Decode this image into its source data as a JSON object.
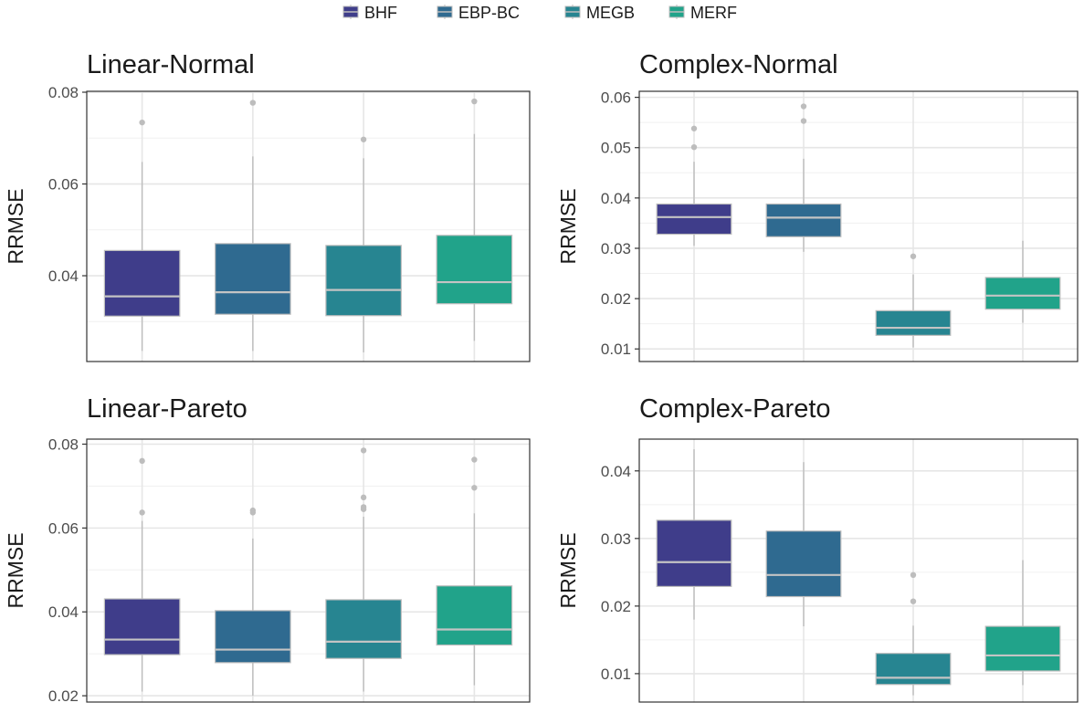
{
  "legend": {
    "entries": [
      {
        "label": "BHF",
        "color": "#3f3d8a"
      },
      {
        "label": "EBP-BC",
        "color": "#2f6a90"
      },
      {
        "label": "MEGB",
        "color": "#278591"
      },
      {
        "label": "MERF",
        "color": "#21a38a"
      }
    ]
  },
  "chart_data": [
    {
      "type": "box",
      "title": "Linear-Normal",
      "ylabel": "RRMSE",
      "ylim": [
        0.0213,
        0.0802
      ],
      "yticks": [
        0.04,
        0.06,
        0.08
      ],
      "ytick_labels": [
        "0.04",
        "0.06",
        "0.08"
      ],
      "grid": true,
      "categories": [
        "BHF",
        "EBP-BC",
        "MEGB",
        "MERF"
      ],
      "boxes": [
        {
          "whisker_low": 0.0236,
          "q1": 0.0312,
          "median": 0.0355,
          "q3": 0.0455,
          "whisker_high": 0.0648,
          "outliers": [
            0.0734
          ]
        },
        {
          "whisker_low": 0.0236,
          "q1": 0.0316,
          "median": 0.0364,
          "q3": 0.047,
          "whisker_high": 0.066,
          "outliers": [
            0.0777
          ]
        },
        {
          "whisker_low": 0.0233,
          "q1": 0.0313,
          "median": 0.0369,
          "q3": 0.0466,
          "whisker_high": 0.0656,
          "outliers": [
            0.0697
          ]
        },
        {
          "whisker_low": 0.0258,
          "q1": 0.0339,
          "median": 0.0386,
          "q3": 0.0488,
          "whisker_high": 0.0709,
          "outliers": [
            0.078
          ]
        }
      ]
    },
    {
      "type": "box",
      "title": "Complex-Normal",
      "ylabel": "RRMSE",
      "ylim": [
        0.0075,
        0.0612
      ],
      "yticks": [
        0.01,
        0.02,
        0.03,
        0.04,
        0.05,
        0.06
      ],
      "ytick_labels": [
        "0.01",
        "0.02",
        "0.03",
        "0.04",
        "0.05",
        "0.06"
      ],
      "grid": true,
      "categories": [
        "BHF",
        "EBP-BC",
        "MEGB",
        "MERF"
      ],
      "boxes": [
        {
          "whisker_low": 0.0305,
          "q1": 0.0328,
          "median": 0.0362,
          "q3": 0.0388,
          "whisker_high": 0.0472,
          "outliers": [
            0.0501,
            0.0538
          ]
        },
        {
          "whisker_low": 0.0293,
          "q1": 0.0323,
          "median": 0.0361,
          "q3": 0.0388,
          "whisker_high": 0.0478,
          "outliers": [
            0.0553,
            0.0582
          ]
        },
        {
          "whisker_low": 0.0103,
          "q1": 0.0127,
          "median": 0.0142,
          "q3": 0.0176,
          "whisker_high": 0.0248,
          "outliers": [
            0.0284
          ]
        },
        {
          "whisker_low": 0.0152,
          "q1": 0.0179,
          "median": 0.0206,
          "q3": 0.0242,
          "whisker_high": 0.0315,
          "outliers": []
        }
      ]
    },
    {
      "type": "box",
      "title": "Linear-Pareto",
      "ylabel": "RRMSE",
      "ylim": [
        0.0185,
        0.0812
      ],
      "yticks": [
        0.02,
        0.04,
        0.06,
        0.08
      ],
      "ytick_labels": [
        "0.02",
        "0.04",
        "0.06",
        "0.08"
      ],
      "grid": true,
      "categories": [
        "BHF",
        "EBP-BC",
        "MEGB",
        "MERF"
      ],
      "boxes": [
        {
          "whisker_low": 0.021,
          "q1": 0.0298,
          "median": 0.0334,
          "q3": 0.0431,
          "whisker_high": 0.0617,
          "outliers": [
            0.0637,
            0.076
          ]
        },
        {
          "whisker_low": 0.02,
          "q1": 0.0279,
          "median": 0.031,
          "q3": 0.0403,
          "whisker_high": 0.0575,
          "outliers": [
            0.0637,
            0.0642
          ]
        },
        {
          "whisker_low": 0.021,
          "q1": 0.0289,
          "median": 0.0329,
          "q3": 0.0429,
          "whisker_high": 0.0627,
          "outliers": [
            0.0645,
            0.065,
            0.0673,
            0.0785
          ]
        },
        {
          "whisker_low": 0.0225,
          "q1": 0.0321,
          "median": 0.0358,
          "q3": 0.0462,
          "whisker_high": 0.0635,
          "outliers": [
            0.0696,
            0.0763
          ]
        }
      ]
    },
    {
      "type": "box",
      "title": "Complex-Pareto",
      "ylabel": "RRMSE",
      "ylim": [
        0.0058,
        0.0447
      ],
      "yticks": [
        0.01,
        0.02,
        0.03,
        0.04
      ],
      "ytick_labels": [
        "0.01",
        "0.02",
        "0.03",
        "0.04"
      ],
      "grid": true,
      "categories": [
        "BHF",
        "EBP-BC",
        "MEGB",
        "MERF"
      ],
      "boxes": [
        {
          "whisker_low": 0.018,
          "q1": 0.0229,
          "median": 0.0265,
          "q3": 0.0327,
          "whisker_high": 0.0432,
          "outliers": []
        },
        {
          "whisker_low": 0.017,
          "q1": 0.0214,
          "median": 0.0246,
          "q3": 0.0311,
          "whisker_high": 0.0413,
          "outliers": []
        },
        {
          "whisker_low": 0.0068,
          "q1": 0.0084,
          "median": 0.0094,
          "q3": 0.013,
          "whisker_high": 0.0171,
          "outliers": [
            0.0207,
            0.0246
          ]
        },
        {
          "whisker_low": 0.0083,
          "q1": 0.0104,
          "median": 0.0127,
          "q3": 0.017,
          "whisker_high": 0.0268,
          "outliers": []
        }
      ]
    }
  ]
}
